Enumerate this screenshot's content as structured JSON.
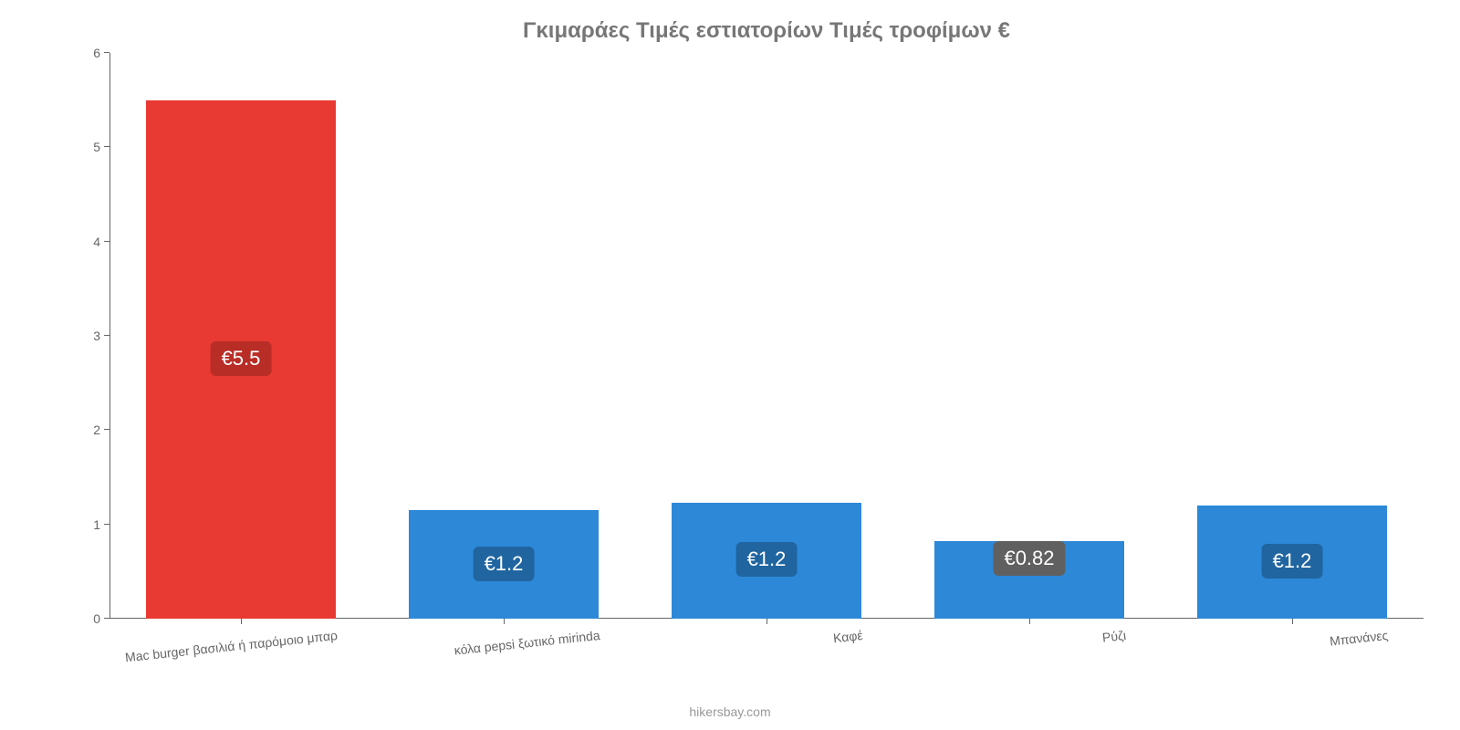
{
  "chart": {
    "type": "bar",
    "title": "Γκιμαράες Τιμές εστιατορίων Τιμές τροφίμων €",
    "title_fontsize": 24,
    "title_color": "#777777",
    "background_color": "#ffffff",
    "axis_color": "#666666",
    "tick_label_color": "#666666",
    "tick_label_fontsize": 14,
    "ylim": [
      0,
      6
    ],
    "ytick_step": 1,
    "yticks": [
      0,
      1,
      2,
      3,
      4,
      5,
      6
    ],
    "bar_width_ratio": 0.72,
    "categories": [
      "Mac burger βασιλιά ή παρόμοιο μπαρ",
      "κόλα pepsi ξωτικό mirinda",
      "Καφέ",
      "Ρύζι",
      "Μπανάνες"
    ],
    "values": [
      5.5,
      1.15,
      1.23,
      0.82,
      1.2
    ],
    "value_labels": [
      "€5.5",
      "€1.2",
      "€1.2",
      "€0.82",
      "€1.2"
    ],
    "bar_colors": [
      "#e83a33",
      "#2d88d8",
      "#2d88d8",
      "#2d88d8",
      "#2d88d8"
    ],
    "value_badge_bg": [
      "#b92d27",
      "#2065a0",
      "#2065a0",
      "#606060",
      "#2065a0"
    ],
    "value_badge_text_color": "#ffffff",
    "value_badge_fontsize": 22,
    "x_label_rotation_deg": -6,
    "source_text": "hikersbay.com",
    "source_color": "#999999",
    "source_fontsize": 14
  }
}
